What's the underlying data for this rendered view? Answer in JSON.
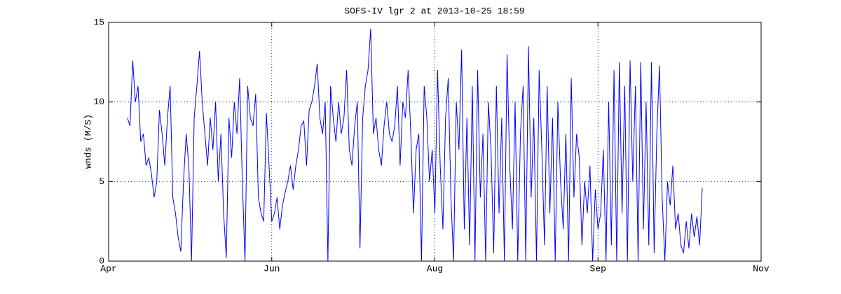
{
  "chart_data": {
    "type": "line",
    "title": "SOFS-IV lgr 2 at 2013-10-25 18:59",
    "y_label": "wnds (M/S)",
    "color": "#0000ff",
    "grid": true,
    "xlim": [
      0,
      244
    ],
    "xticks": [
      {
        "value": 0,
        "label": "Apr"
      },
      {
        "value": 61,
        "label": "Jun"
      },
      {
        "value": 122,
        "label": "Aug"
      },
      {
        "value": 183,
        "label": "Sep"
      },
      {
        "value": 244,
        "label": "Nov"
      }
    ],
    "ylim": [
      0,
      15
    ],
    "yticks": [
      0,
      5,
      10,
      15
    ],
    "x": [
      7,
      8,
      9,
      10,
      11,
      12,
      13,
      14,
      15,
      16,
      17,
      18,
      19,
      20,
      21,
      22,
      23,
      24,
      25,
      26,
      27,
      28,
      29,
      30,
      31,
      32,
      33,
      34,
      35,
      36,
      37,
      38,
      39,
      40,
      41,
      42,
      43,
      44,
      45,
      46,
      47,
      48,
      49,
      50,
      51,
      52,
      53,
      54,
      55,
      56,
      57,
      58,
      59,
      60,
      61,
      62,
      63,
      64,
      65,
      66,
      67,
      68,
      69,
      70,
      71,
      72,
      73,
      74,
      75,
      76,
      77,
      78,
      79,
      80,
      81,
      82,
      83,
      84,
      85,
      86,
      87,
      88,
      89,
      90,
      91,
      92,
      93,
      94,
      95,
      96,
      97,
      98,
      99,
      100,
      101,
      102,
      103,
      104,
      105,
      106,
      107,
      108,
      109,
      110,
      111,
      112,
      113,
      114,
      115,
      116,
      117,
      118,
      119,
      120,
      121,
      122,
      123,
      124,
      125,
      126,
      127,
      128,
      129,
      130,
      131,
      132,
      133,
      134,
      135,
      136,
      137,
      138,
      139,
      140,
      141,
      142,
      143,
      144,
      145,
      146,
      147,
      148,
      149,
      150,
      151,
      152,
      153,
      154,
      155,
      156,
      157,
      158,
      159,
      160,
      161,
      162,
      163,
      164,
      165,
      166,
      167,
      168,
      169,
      170,
      171,
      172,
      173,
      174,
      175,
      176,
      177,
      178,
      179,
      180,
      181,
      182,
      183,
      184,
      185,
      186,
      187,
      188,
      189,
      190,
      191,
      192,
      193,
      194,
      195,
      196,
      197,
      198,
      199,
      200,
      201,
      202,
      203,
      204,
      205,
      206,
      207,
      208,
      209,
      210,
      211,
      212,
      213,
      214,
      215,
      216,
      217,
      218,
      219,
      220,
      221,
      222
    ],
    "values": [
      9,
      8.5,
      12.6,
      10,
      11,
      7.5,
      8,
      6,
      6.5,
      5.5,
      4,
      5,
      9.5,
      8,
      6,
      9,
      11,
      4,
      3,
      1.5,
      0.6,
      5,
      8,
      6,
      0,
      9,
      11,
      13.2,
      10,
      8,
      6,
      9,
      7,
      10,
      5,
      8,
      3,
      0.2,
      9,
      6.5,
      10,
      8,
      11.5,
      5,
      0,
      11,
      9,
      8.5,
      10.5,
      4,
      3,
      2.5,
      9.3,
      6,
      2.5,
      3,
      4,
      2,
      3.5,
      4.3,
      5,
      6,
      4.5,
      6,
      7,
      8.5,
      8.8,
      6,
      9.5,
      10,
      11,
      12.4,
      9,
      8,
      10,
      0,
      11,
      9,
      7.5,
      10,
      8,
      9,
      12,
      7,
      6,
      8.5,
      10,
      0.8,
      9,
      11,
      12,
      14.6,
      8,
      9,
      7,
      6,
      8.5,
      10,
      8,
      7.5,
      8.5,
      11,
      6,
      10,
      9,
      12,
      8,
      3,
      7,
      8,
      0,
      11,
      9,
      5,
      7,
      3,
      12,
      6,
      2,
      9,
      11.5,
      4,
      0,
      10,
      7,
      13.3,
      2,
      9,
      1,
      11,
      0,
      12,
      4,
      8,
      0,
      10,
      7,
      0.5,
      11,
      3,
      9,
      0,
      13,
      6,
      2,
      10,
      0,
      8,
      11,
      0,
      13.5,
      4,
      9,
      0,
      12,
      7,
      1,
      11,
      3,
      9,
      0,
      10,
      5,
      2,
      8,
      0,
      11.5,
      4,
      8,
      6.5,
      1,
      5,
      3,
      6,
      0,
      4.5,
      2,
      3,
      7,
      0,
      10,
      1,
      12,
      0,
      12.5,
      3,
      11,
      0,
      12.6,
      5,
      11,
      0,
      12.5,
      2,
      10,
      1,
      12.5,
      0.5,
      8,
      12.3,
      4,
      0,
      5,
      3.5,
      6,
      2,
      3,
      1,
      0.5,
      2.5,
      0.8,
      3,
      1.5,
      2.8,
      1,
      4.6
    ]
  }
}
